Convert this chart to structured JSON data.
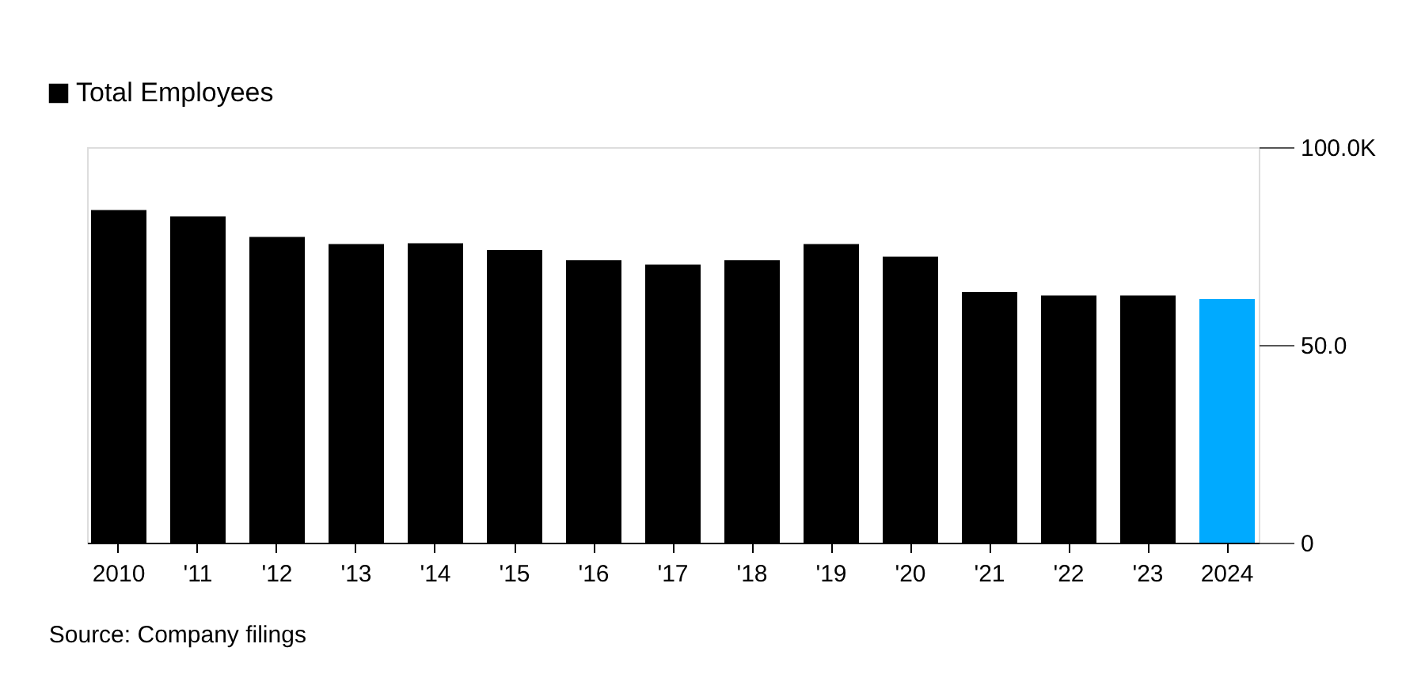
{
  "chart_data": {
    "type": "bar",
    "categories": [
      "2010",
      "'11",
      "'12",
      "'13",
      "'14",
      "'15",
      "'16",
      "'17",
      "'18",
      "'19",
      "'20",
      "'21",
      "'22",
      "'23",
      "2024"
    ],
    "series": [
      {
        "name": "Total Employees",
        "color": "#000000",
        "values": [
          84.1,
          82.5,
          77.3,
          75.5,
          75.7,
          74.0,
          71.4,
          70.3,
          71.4,
          75.5,
          72.3,
          63.4,
          62.5,
          62.5,
          61.6
        ],
        "colors": [
          "#000000",
          "#000000",
          "#000000",
          "#000000",
          "#000000",
          "#000000",
          "#000000",
          "#000000",
          "#000000",
          "#000000",
          "#000000",
          "#000000",
          "#000000",
          "#000000",
          "#00aaff"
        ]
      }
    ],
    "ylim": [
      0,
      100
    ],
    "yticks": [
      0,
      {
        "value": 50,
        "label": "50.0"
      },
      {
        "value": 100,
        "label": "100.0K"
      }
    ],
    "grid": false,
    "legend": "top left",
    "annotations": [
      "Source: Company filings"
    ]
  }
}
